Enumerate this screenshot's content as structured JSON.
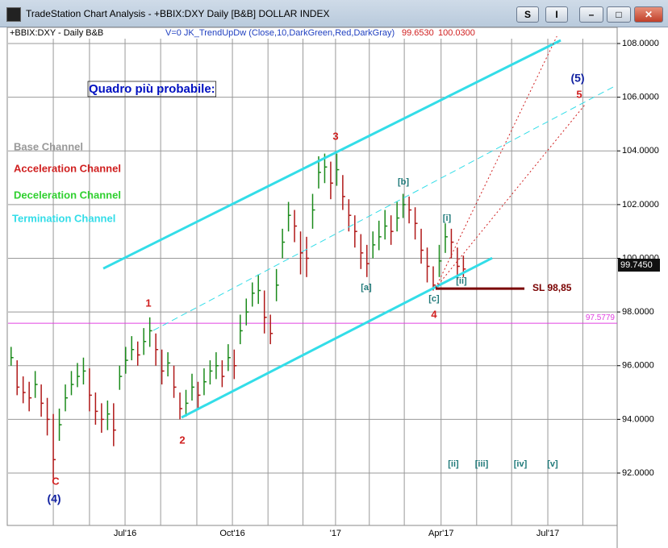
{
  "window": {
    "title": "TradeStation Chart Analysis - +BBIX:DXY Daily [B&B] DOLLAR INDEX",
    "buttons": [
      "S",
      "I"
    ]
  },
  "chart_data": {
    "type": "ohlc",
    "header": {
      "symbol": "+BBIX:DXY - Daily  B&B",
      "indicator": "V=0  JK_TrendUpDw  (Close,10,DarkGreen,Red,DarkGray)",
      "values": [
        "99.6530",
        "100.0300"
      ]
    },
    "up_color": "#1a8a1a",
    "down_color": "#b01818",
    "high": [
      96.7,
      96.2,
      95.6,
      95.4,
      95.8,
      95.3,
      94.8,
      94.2,
      94.4,
      95.3,
      95.8,
      96.1,
      96.3,
      95.9,
      95.0,
      94.6,
      94.7,
      94.6,
      96.0,
      96.7,
      97.1,
      96.9,
      97.4,
      97.8,
      97.2,
      96.6,
      96.5,
      96.0,
      95.0,
      95.1,
      95.7,
      95.4,
      95.9,
      96.2,
      96.5,
      96.2,
      96.8,
      96.6,
      97.9,
      98.5,
      99.1,
      99.4,
      98.8,
      97.9,
      99.6,
      101.1,
      102.1,
      101.8,
      101.0,
      100.8,
      102.4,
      103.8,
      103.9,
      103.6,
      103.9,
      103.1,
      102.2,
      101.6,
      100.9,
      100.5,
      101.0,
      101.4,
      101.8,
      101.6,
      102.1,
      102.4,
      102.3,
      101.9,
      101.1,
      100.4,
      99.7,
      100.5,
      101.3,
      101.1,
      100.4,
      100.1
    ],
    "low": [
      96.0,
      94.9,
      94.6,
      94.3,
      94.8,
      94.1,
      93.4,
      91.8,
      93.2,
      94.3,
      94.9,
      95.2,
      95.3,
      94.3,
      93.8,
      93.5,
      93.6,
      93.0,
      95.1,
      95.7,
      96.2,
      96.0,
      96.4,
      96.7,
      96.0,
      95.3,
      95.6,
      94.8,
      94.0,
      94.1,
      94.7,
      94.4,
      94.9,
      95.3,
      95.5,
      95.2,
      95.8,
      95.5,
      96.8,
      97.5,
      98.2,
      98.3,
      97.2,
      96.8,
      98.4,
      100.0,
      101.0,
      100.6,
      99.4,
      99.3,
      101.1,
      102.6,
      102.8,
      102.2,
      102.7,
      101.8,
      101.0,
      100.4,
      99.6,
      99.3,
      100.0,
      100.3,
      100.7,
      100.5,
      101.0,
      101.5,
      101.3,
      100.7,
      99.8,
      99.1,
      98.8,
      99.3,
      100.2,
      100.0,
      99.2,
      99.3
    ],
    "close": [
      96.3,
      95.2,
      95.0,
      94.8,
      95.3,
      94.6,
      94.0,
      92.5,
      93.8,
      94.8,
      95.3,
      95.6,
      95.8,
      94.9,
      94.3,
      94.0,
      94.2,
      93.6,
      95.6,
      96.2,
      96.6,
      96.4,
      96.9,
      97.3,
      96.6,
      95.8,
      96.1,
      95.2,
      94.4,
      94.6,
      95.2,
      94.9,
      95.4,
      95.8,
      96.0,
      95.6,
      96.3,
      96.0,
      97.3,
      98.0,
      98.7,
      98.8,
      97.8,
      97.2,
      99.0,
      100.6,
      101.6,
      101.2,
      100.2,
      100.0,
      101.8,
      103.2,
      103.4,
      102.8,
      103.3,
      102.3,
      101.6,
      101.0,
      100.2,
      99.8,
      100.5,
      100.8,
      101.2,
      101.0,
      101.5,
      102.0,
      101.8,
      101.3,
      100.3,
      99.7,
      99.0,
      99.9,
      100.8,
      100.6,
      99.7,
      99.6
    ],
    "xlim": [
      -0.5,
      100.5
    ],
    "xticks": [
      {
        "value": 18.9,
        "label": "Jul'16"
      },
      {
        "value": 36.7,
        "label": "Oct'16"
      },
      {
        "value": 53.8,
        "label": "'17"
      },
      {
        "value": 71.3,
        "label": "Apr'17"
      },
      {
        "value": 89.0,
        "label": "Jul'17"
      }
    ],
    "xminor": [
      7.0,
      13.0,
      24.8,
      30.8,
      42.6,
      48.4,
      59.4,
      65.2,
      77.2,
      83.0,
      94.8
    ],
    "ylim": [
      90.4,
      108.3
    ],
    "yticks": [
      {
        "value": 92,
        "label": "92.0000"
      },
      {
        "value": 94,
        "label": "94.0000"
      },
      {
        "value": 96,
        "label": "96.0000"
      },
      {
        "value": 98,
        "label": "98.0000"
      },
      {
        "value": 100,
        "label": "100.0000"
      },
      {
        "value": 102,
        "label": "102.0000"
      },
      {
        "value": 104,
        "label": "104.0000"
      },
      {
        "value": 106,
        "label": "106.0000"
      },
      {
        "value": 108,
        "label": "108.0000"
      }
    ],
    "grid": true,
    "last_price": {
      "value": 99.745,
      "label": "99.7450"
    },
    "hline": {
      "value": 97.5779,
      "label": "97.5779",
      "color": "#e040e0"
    },
    "trendlines": [
      {
        "x": [
          15.29,
          91.14
        ],
        "y": [
          99.62,
          108.12
        ],
        "color": "#33dde8",
        "width": 3,
        "dash": false
      },
      {
        "x": [
          28.26,
          79.77
        ],
        "y": [
          94.07,
          100.01
        ],
        "color": "#33dde8",
        "width": 3,
        "dash": false
      },
      {
        "x": [
          23.58,
          99.83
        ],
        "y": [
          97.31,
          106.38
        ],
        "color": "#33dde8",
        "width": 1,
        "dash": true
      },
      {
        "x": [
          70.4,
          90.5
        ],
        "y": [
          98.9,
          108.27
        ],
        "color": "#d02020",
        "width": 1,
        "dash": true
      },
      {
        "x": [
          70.4,
          95.15
        ],
        "y": [
          98.9,
          105.72
        ],
        "color": "#d02020",
        "width": 1,
        "dash": true
      },
      {
        "x": [
          70.4,
          85.12
        ],
        "y": [
          98.87,
          98.87
        ],
        "color": "#7a0000",
        "width": 3,
        "dash": false
      }
    ],
    "stop_label": "SL 98,85",
    "annotations": [
      "Quadro più probabile:",
      "Base Channel",
      "Acceleration Channel",
      "Deceleration Channel",
      "Termination Channel",
      "1",
      "2",
      "3",
      "4",
      "5",
      "(5)",
      "(4)",
      "C",
      "[a]",
      "[b]",
      "[c]",
      "[i]",
      "[ii]",
      "[ii]",
      "[iii]",
      "[iv]",
      "[v]"
    ]
  }
}
